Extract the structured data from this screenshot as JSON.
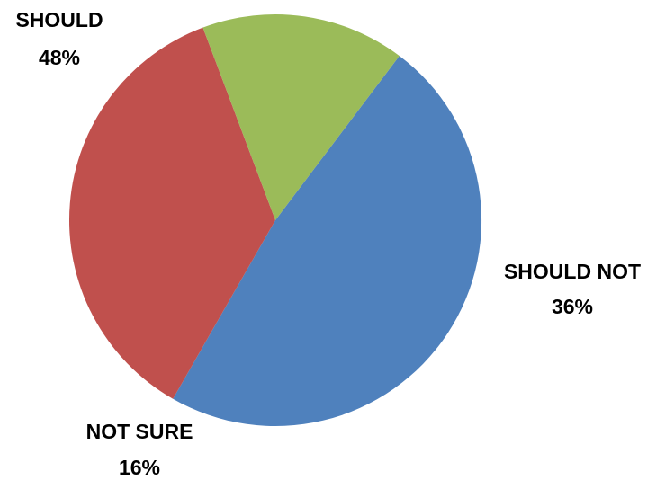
{
  "chart_data": {
    "type": "pie",
    "categories": [
      "SHOULD",
      "SHOULD NOT",
      "NOT SURE"
    ],
    "values": [
      48,
      36,
      16
    ],
    "value_labels": [
      "48%",
      "36%",
      "16%"
    ],
    "colors": [
      "#4F81BD",
      "#C0504D",
      "#9BBB59"
    ],
    "start_angle_deg": 37,
    "direction": "clockwise",
    "legend": "none",
    "title": ""
  }
}
